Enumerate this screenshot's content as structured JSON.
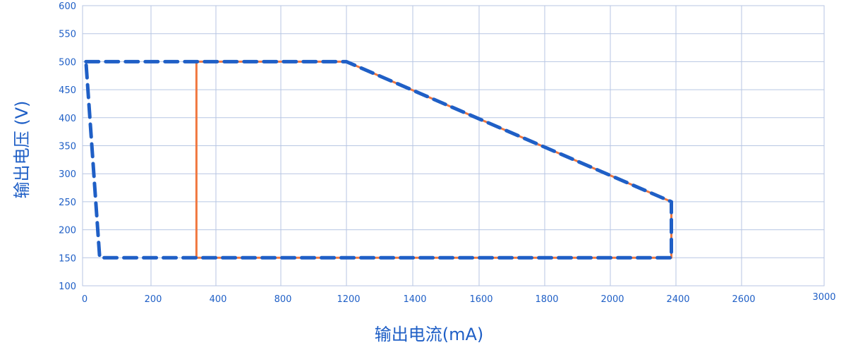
{
  "chart_data": {
    "type": "line",
    "xlabel": "输出电流(mA)",
    "ylabel": "输出电压 (V)",
    "x_ticks": [
      "0",
      "200",
      "400",
      "800",
      "1200",
      "1400",
      "1600",
      "1800",
      "2000",
      "2400",
      "2600",
      "3000"
    ],
    "y_ticks": [
      "100",
      "150",
      "200",
      "250",
      "300",
      "350",
      "400",
      "450",
      "500",
      "550",
      "600"
    ],
    "ylim": [
      100,
      600
    ],
    "grid": true,
    "colors": {
      "text": "#1f5fc6",
      "grid": "#b7c6e3",
      "solid_series": "#f07840",
      "dashed_series": "#1f5fc6"
    },
    "series": [
      {
        "style": "solid",
        "points": [
          [
            340,
            150
          ],
          [
            340,
            500
          ],
          [
            1200,
            500
          ],
          [
            2372,
            250
          ],
          [
            2372,
            150
          ],
          [
            340,
            150
          ]
        ]
      },
      {
        "style": "dashed",
        "points": [
          [
            10,
            500
          ],
          [
            1200,
            500
          ],
          [
            2372,
            250
          ],
          [
            2372,
            150
          ],
          [
            50,
            150
          ],
          [
            10,
            500
          ]
        ]
      }
    ]
  }
}
